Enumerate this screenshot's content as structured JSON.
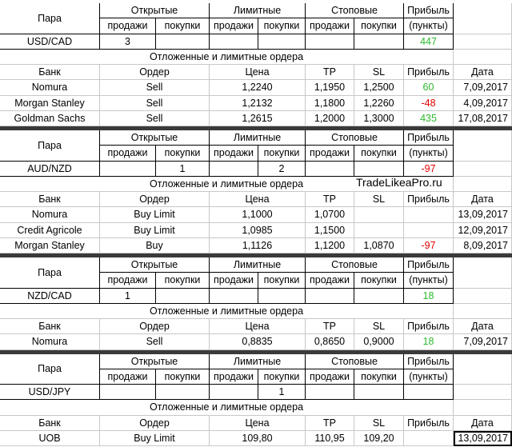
{
  "watermark": "TradeLikeaPro.ru",
  "blocks": [
    {
      "header": {
        "pair": "Пара",
        "groups": [
          "Открытые",
          "Лимитные",
          "Стоповые"
        ],
        "profit": "Прибыль",
        "sub": [
          "продажи",
          "покупки",
          "продажи",
          "покупки",
          "продажи",
          "покупки"
        ],
        "profit_unit": "(пункты)"
      },
      "summary": {
        "pair": "USD/CAD",
        "cells": [
          3,
          null,
          null,
          null,
          null,
          null
        ],
        "profit": 447
      },
      "pending_title": "Отложенные и лимитные ордера",
      "order_header": [
        "Банк",
        "Ордер",
        "Цена",
        "TP",
        "SL",
        "Прибыль",
        "Дата"
      ],
      "orders": [
        {
          "bank": "Nomura",
          "order": "Sell",
          "price": "1,2240",
          "tp": "1,1950",
          "sl": "1,2500",
          "profit": 60,
          "date": "7,09,2017"
        },
        {
          "bank": "Morgan Stanley",
          "order": "Sell",
          "price": "1,2132",
          "tp": "1,1800",
          "sl": "1,2260",
          "profit": -48,
          "date": "4,09,2017"
        },
        {
          "bank": "Goldman Sachs",
          "order": "Sell",
          "price": "1,2615",
          "tp": "1,2000",
          "sl": "1,3000",
          "profit": 435,
          "date": "17,08,2017"
        }
      ]
    },
    {
      "header": {
        "pair": "Пара",
        "groups": [
          "Открытые",
          "Лимитные",
          "Стоповые"
        ],
        "profit": "Прибыль",
        "sub": [
          "продажи",
          "покупки",
          "продажи",
          "покупки",
          "продажи",
          "покупки"
        ],
        "profit_unit": "(пункты)"
      },
      "summary": {
        "pair": "AUD/NZD",
        "cells": [
          null,
          1,
          null,
          2,
          null,
          null
        ],
        "profit": -97
      },
      "pending_title": "Отложенные и лимитные ордера",
      "order_header": [
        "Банк",
        "Ордер",
        "Цена",
        "TP",
        "SL",
        "Прибыль",
        "Дата"
      ],
      "orders": [
        {
          "bank": "Nomura",
          "order": "Buy Limit",
          "price": "1,1000",
          "tp": "1,0700",
          "sl": null,
          "profit": null,
          "date": "13,09,2017"
        },
        {
          "bank": "Credit Agricole",
          "order": "Buy Limit",
          "price": "1,0985",
          "tp": "1,1500",
          "sl": null,
          "profit": null,
          "date": "12,09,2017"
        },
        {
          "bank": "Morgan Stanley",
          "order": "Buy",
          "price": "1,1126",
          "tp": "1,1200",
          "sl": "1,0870",
          "profit": -97,
          "date": "8,09,2017"
        }
      ]
    },
    {
      "header": {
        "pair": "Пара",
        "groups": [
          "Открытые",
          "Лимитные",
          "Стоповые"
        ],
        "profit": "Прибыль",
        "sub": [
          "продажи",
          "покупки",
          "продажи",
          "покупки",
          "продажи",
          "покупки"
        ],
        "profit_unit": "(пункты)"
      },
      "summary": {
        "pair": "NZD/CAD",
        "cells": [
          1,
          null,
          null,
          null,
          null,
          null
        ],
        "profit": 18
      },
      "pending_title": "Отложенные и лимитные ордера",
      "order_header": [
        "Банк",
        "Ордер",
        "Цена",
        "TP",
        "SL",
        "Прибыль",
        "Дата"
      ],
      "orders": [
        {
          "bank": "Nomura",
          "order": "Sell",
          "price": "0,8835",
          "tp": "0,8650",
          "sl": "0,9000",
          "profit": 18,
          "date": "7,09,2017"
        }
      ]
    },
    {
      "header": {
        "pair": "Пара",
        "groups": [
          "Открытые",
          "Лимитные",
          "Стоповые"
        ],
        "profit": "Прибыль",
        "sub": [
          "продажи",
          "покупки",
          "продажи",
          "покупки",
          "продажи",
          "покупки"
        ],
        "profit_unit": "(пункты)"
      },
      "summary": {
        "pair": "USD/JPY",
        "cells": [
          null,
          null,
          null,
          1,
          null,
          null
        ],
        "profit": null
      },
      "pending_title": "Отложенные и лимитные ордера",
      "order_header": [
        "Банк",
        "Ордер",
        "Цена",
        "TP",
        "SL",
        "Прибыль",
        "Дата"
      ],
      "orders": [
        {
          "bank": "UOB",
          "order": "Buy Limit",
          "price": "109,80",
          "tp": "110,95",
          "sl": "109,20",
          "profit": null,
          "date": "13,09,2017"
        }
      ]
    }
  ]
}
